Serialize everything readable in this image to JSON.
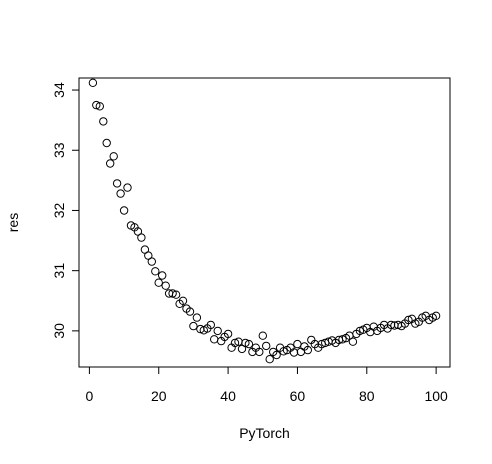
{
  "chart_data": {
    "type": "scatter",
    "title": "",
    "xlabel": "PyTorch",
    "ylabel": "res",
    "xlim": [
      -3,
      104
    ],
    "ylim": [
      29.4,
      34.2
    ],
    "x_ticks": [
      0,
      20,
      40,
      60,
      80,
      100
    ],
    "y_ticks": [
      30,
      31,
      32,
      33,
      34
    ],
    "grid": false,
    "legend": "none",
    "marker": "open-circle",
    "series": [
      {
        "x": [
          1,
          2,
          3,
          4,
          5,
          6,
          7,
          8,
          9,
          10,
          11,
          12,
          13,
          14,
          15,
          16,
          17,
          18,
          19,
          20,
          21,
          22,
          23,
          24,
          25,
          26,
          27,
          28,
          29,
          30,
          31,
          32,
          33,
          34,
          35,
          36,
          37,
          38,
          39,
          40,
          41,
          42,
          43,
          44,
          45,
          46,
          47,
          48,
          49,
          50,
          51,
          52,
          53,
          54,
          55,
          56,
          57,
          58,
          59,
          60,
          61,
          62,
          63,
          64,
          65,
          66,
          67,
          68,
          69,
          70,
          71,
          72,
          73,
          74,
          75,
          76,
          77,
          78,
          79,
          80,
          81,
          82,
          83,
          84,
          85,
          86,
          87,
          88,
          89,
          90,
          91,
          92,
          93,
          94,
          95,
          96,
          97,
          98,
          99,
          100
        ],
        "y": [
          34.12,
          33.75,
          33.73,
          33.48,
          33.12,
          32.78,
          32.9,
          32.45,
          32.28,
          32.0,
          32.38,
          31.75,
          31.72,
          31.65,
          31.55,
          31.35,
          31.25,
          31.15,
          30.99,
          30.8,
          30.92,
          30.75,
          30.62,
          30.62,
          30.6,
          30.45,
          30.5,
          30.37,
          30.32,
          30.08,
          30.22,
          30.03,
          30.01,
          30.04,
          30.1,
          29.86,
          30.0,
          29.83,
          29.9,
          29.95,
          29.72,
          29.8,
          29.82,
          29.7,
          29.8,
          29.78,
          29.65,
          29.72,
          29.65,
          29.92,
          29.75,
          29.53,
          29.65,
          29.6,
          29.72,
          29.66,
          29.68,
          29.72,
          29.64,
          29.78,
          29.65,
          29.74,
          29.68,
          29.85,
          29.78,
          29.72,
          29.78,
          29.8,
          29.82,
          29.84,
          29.8,
          29.85,
          29.86,
          29.88,
          29.92,
          29.82,
          29.95,
          30.0,
          30.02,
          30.05,
          29.98,
          30.07,
          30.0,
          30.05,
          30.1,
          30.04,
          30.1,
          30.09,
          30.1,
          30.08,
          30.12,
          30.18,
          30.2,
          30.12,
          30.15,
          30.22,
          30.25,
          30.18,
          30.22,
          30.25
        ]
      }
    ]
  }
}
